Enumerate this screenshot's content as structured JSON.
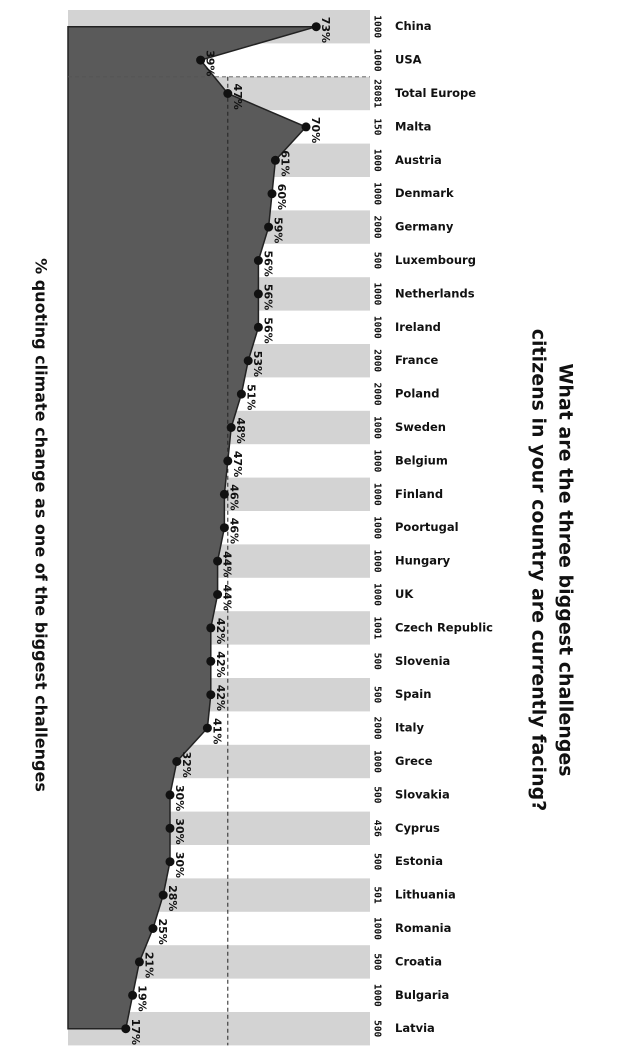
{
  "chart_data": {
    "type": "area",
    "title": [
      "What are the three biggest challenges",
      "citizens in your country are currently facing?"
    ],
    "axis_label": "% quoting climate change as one of the biggest challenges",
    "categories": [
      "China",
      "USA",
      "Total Europe",
      "Malta",
      "Austria",
      "Denmark",
      "Germany",
      "Luxembourg",
      "Netherlands",
      "Ireland",
      "France",
      "Poland",
      "Sweden",
      "Belgium",
      "Finland",
      "Poortugal",
      "Hungary",
      "UK",
      "Czech Republic",
      "Slovenia",
      "Spain",
      "Italy",
      "Grece",
      "Slovakia",
      "Cyprus",
      "Estonia",
      "Lithuania",
      "Romania",
      "Croatia",
      "Bulgaria",
      "Latvia"
    ],
    "sample_sizes": [
      1000,
      1000,
      28081,
      150,
      1000,
      1000,
      2000,
      500,
      1000,
      1000,
      2000,
      2000,
      1000,
      1000,
      1000,
      1000,
      1000,
      1000,
      1001,
      500,
      500,
      2000,
      1000,
      500,
      436,
      500,
      501,
      1000,
      500,
      1000,
      500
    ],
    "values": [
      73,
      39,
      47,
      70,
      61,
      60,
      59,
      56,
      56,
      56,
      53,
      51,
      48,
      47,
      46,
      46,
      44,
      44,
      42,
      42,
      42,
      41,
      32,
      30,
      30,
      30,
      28,
      25,
      21,
      19,
      17
    ],
    "value_labels": [
      "73%",
      "39%",
      "47%",
      "70%",
      "61%",
      "60%",
      "59%",
      "56%",
      "56%",
      "56%",
      "53%",
      "51%",
      "48%",
      "47%",
      "46%",
      "46%",
      "44%",
      "44%",
      "42%",
      "42%",
      "42%",
      "41%",
      "32%",
      "30%",
      "30%",
      "30%",
      "28%",
      "25%",
      "21%",
      "19%",
      "17%"
    ],
    "reference_index": 2,
    "ylim": [
      0,
      100
    ],
    "color": "#5a5a5a",
    "band_color": "#d3d3d3"
  }
}
